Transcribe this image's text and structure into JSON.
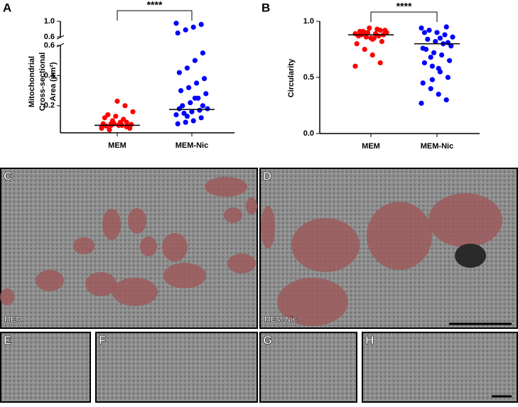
{
  "panels": {
    "letters": [
      "A",
      "B",
      "C",
      "D",
      "E",
      "F",
      "G",
      "H"
    ],
    "image_labels": [
      "MEM",
      "MEM-Nic"
    ]
  },
  "chart_data": [
    {
      "type": "strip",
      "ylabel": [
        "Mitochondrial",
        "Cross-sectional",
        "Area (μm²)"
      ],
      "categories": [
        "MEM",
        "MEM-Nic"
      ],
      "colors": [
        "#ff0000",
        "#0000ff"
      ],
      "values": [
        [
          0.05,
          0.06,
          0.07,
          0.07,
          0.08,
          0.06,
          0.09,
          0.1,
          0.12,
          0.05,
          0.07,
          0.08,
          0.065,
          0.075,
          0.11,
          0.13,
          0.14,
          0.16,
          0.2,
          0.23,
          0.04,
          0.06,
          0.09,
          0.07,
          0.08
        ],
        [
          0.95,
          0.92,
          0.85,
          0.78,
          0.7,
          0.55,
          0.5,
          0.45,
          0.42,
          0.38,
          0.35,
          0.32,
          0.3,
          0.28,
          0.25,
          0.22,
          0.2,
          0.18,
          0.17,
          0.16,
          0.15,
          0.14,
          0.12,
          0.1,
          0.09,
          0.08,
          0.2,
          0.25,
          0.13,
          0.18
        ]
      ],
      "medians": [
        0.07,
        0.175
      ],
      "ylim": [
        0.02,
        0.6
      ],
      "yticks": [
        0.2,
        0.4,
        0.6
      ],
      "ybreak_lim": [
        0.6,
        1.0
      ],
      "ybreak_ticks": [
        0.6,
        {
          "value": 1.0,
          "label": "1.0"
        }
      ],
      "annotation": "****"
    },
    {
      "type": "strip",
      "ylabel": [
        "Circularity"
      ],
      "categories": [
        "MEM",
        "MEM-Nic"
      ],
      "colors": [
        "#ff0000",
        "#0000ff"
      ],
      "values": [
        [
          0.6,
          0.63,
          0.7,
          0.75,
          0.8,
          0.82,
          0.85,
          0.86,
          0.87,
          0.88,
          0.89,
          0.9,
          0.91,
          0.92,
          0.93,
          0.94,
          0.88,
          0.9,
          0.87,
          0.85,
          0.91,
          0.89,
          0.92,
          0.84,
          0.9
        ],
        [
          0.27,
          0.3,
          0.35,
          0.4,
          0.45,
          0.5,
          0.55,
          0.6,
          0.63,
          0.65,
          0.7,
          0.72,
          0.75,
          0.78,
          0.8,
          0.82,
          0.84,
          0.86,
          0.88,
          0.9,
          0.92,
          0.94,
          0.95,
          0.58,
          0.68,
          0.76,
          0.81,
          0.85,
          0.48,
          0.9
        ]
      ],
      "medians": [
        0.88,
        0.8
      ],
      "ylim": [
        0,
        1.0
      ],
      "yticks": [
        {
          "value": 0,
          "label": "0.0"
        },
        0.5,
        {
          "value": 1.0,
          "label": "1.0"
        }
      ],
      "annotation": "****"
    }
  ]
}
